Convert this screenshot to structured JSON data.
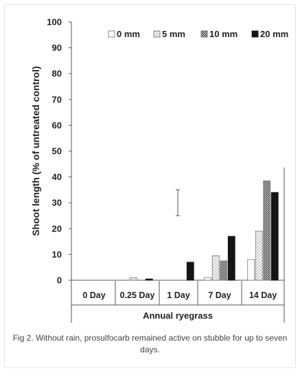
{
  "chart_data": {
    "type": "bar",
    "title": "",
    "xlabel": "Annual ryegrass",
    "ylabel": "Shoot length (% of untreated control)",
    "ylim": [
      0,
      100
    ],
    "yticks": [
      "0",
      "10",
      "20",
      "30",
      "40",
      "50",
      "60",
      "70",
      "80",
      "90",
      "100"
    ],
    "categories": [
      "0 Day",
      "0.25 Day",
      "1 Day",
      "7 Day",
      "14 Day"
    ],
    "legend_position": "top-right",
    "grid": false,
    "series": [
      {
        "name": "0 mm",
        "pattern": "white",
        "values": [
          0,
          0,
          0,
          1,
          8
        ]
      },
      {
        "name": "5 mm",
        "pattern": "stripes",
        "values": [
          0,
          1,
          0,
          9.5,
          19
        ]
      },
      {
        "name": "10 mm",
        "pattern": "dots",
        "values": [
          0,
          0,
          0,
          7.5,
          38.5
        ]
      },
      {
        "name": "20 mm",
        "pattern": "black",
        "values": [
          0,
          0.5,
          7,
          17,
          34
        ]
      }
    ],
    "error_bar": {
      "low": 25,
      "high": 35
    }
  },
  "caption": "Fig 2. Without rain, prosulfocarb remained active on stubble for up to seven days."
}
